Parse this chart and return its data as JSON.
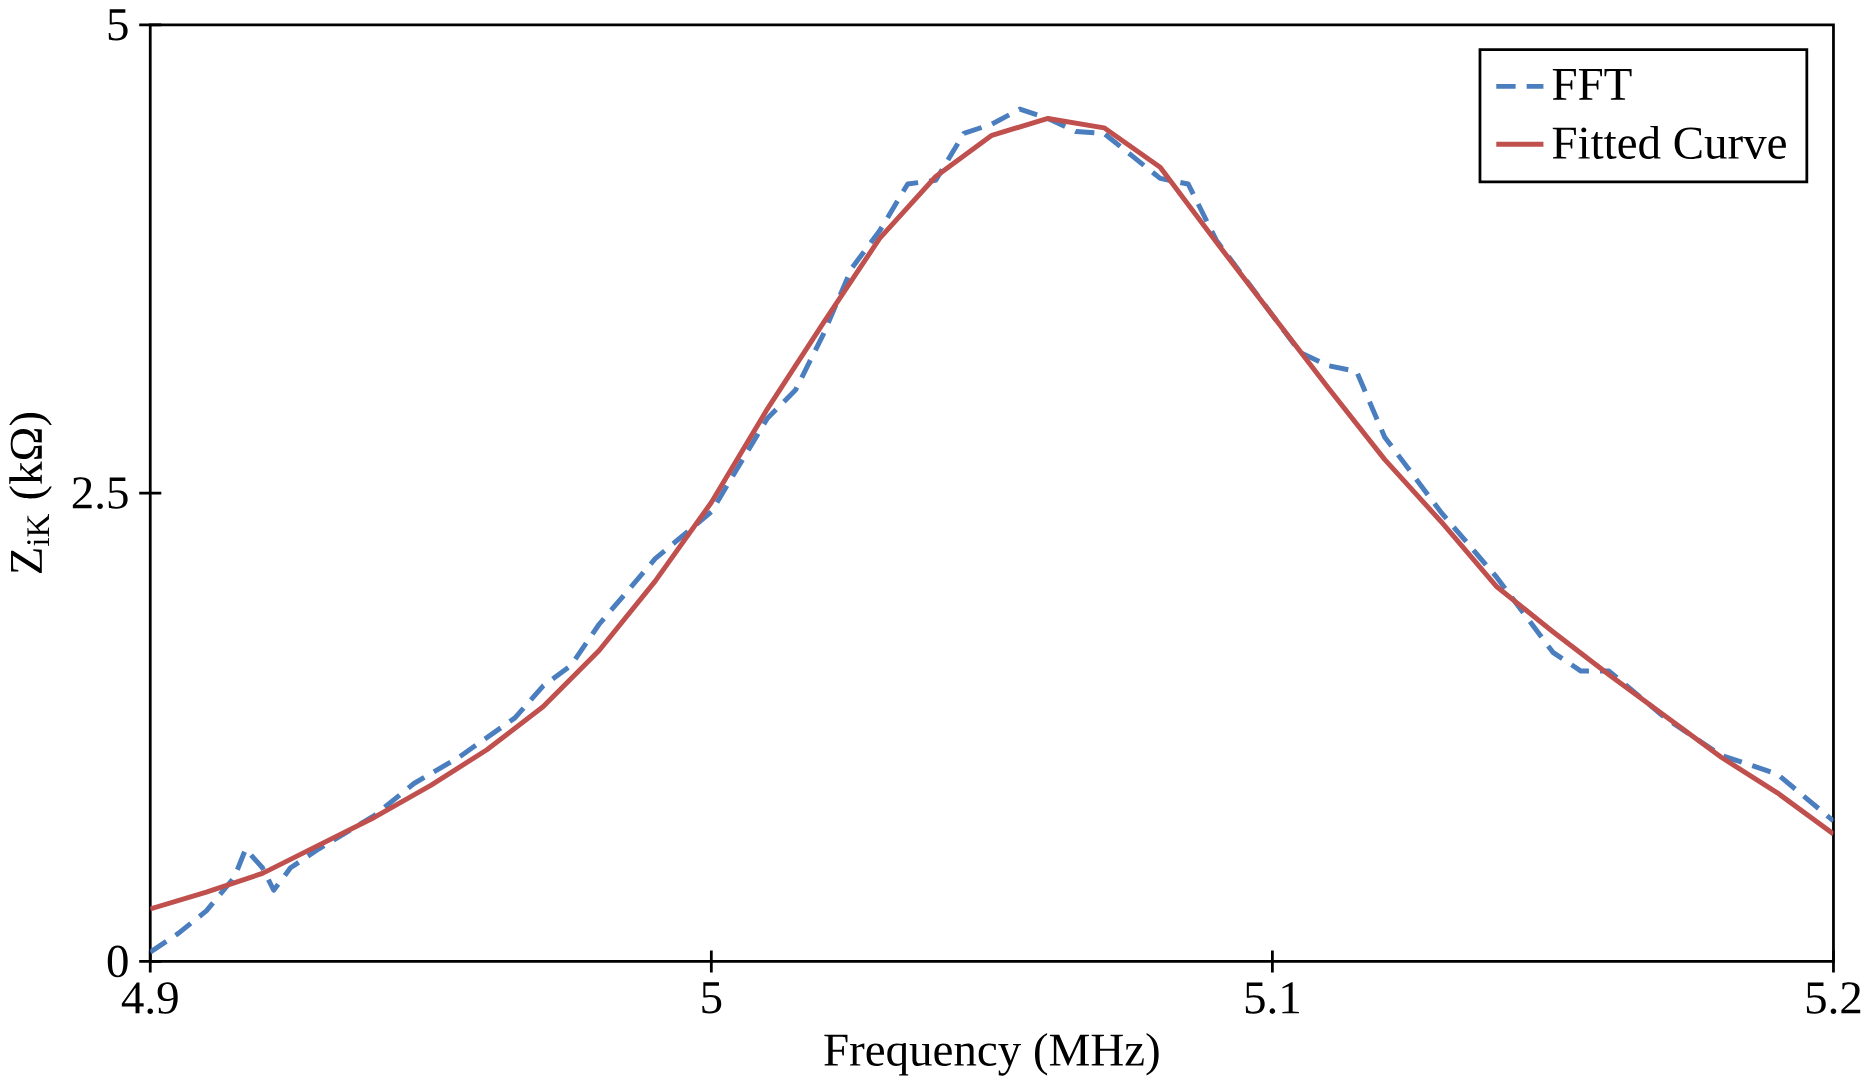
{
  "chart_data": {
    "type": "line",
    "xlabel": "Frequency (MHz)",
    "ylabel": "Z$_{iK}$  (kΩ)",
    "xlim": [
      4.9,
      5.2
    ],
    "xticks": [
      4.9,
      5,
      5.1,
      5.2
    ],
    "ylim": [
      0,
      5
    ],
    "yticks": [
      0,
      2.5,
      5
    ],
    "grid": false,
    "legend": "top right",
    "marker": "none",
    "series": [
      {
        "name": "FFT",
        "color": "#4a7ebf",
        "line_style": "dashed",
        "x": [
          4.9,
          4.905,
          4.91,
          4.915,
          4.917,
          4.92,
          4.922,
          4.925,
          4.93,
          4.94,
          4.947,
          4.955,
          4.965,
          4.97,
          4.975,
          4.98,
          4.99,
          5.0,
          5.01,
          5.015,
          5.02,
          5.025,
          5.03,
          5.035,
          5.04,
          5.045,
          5.05,
          5.055,
          5.06,
          5.065,
          5.07,
          5.075,
          5.08,
          5.085,
          5.09,
          5.1,
          5.105,
          5.11,
          5.115,
          5.12,
          5.13,
          5.14,
          5.15,
          5.155,
          5.16,
          5.17,
          5.18,
          5.19,
          5.2
        ],
        "values": [
          0.05,
          0.15,
          0.27,
          0.45,
          0.6,
          0.5,
          0.38,
          0.5,
          0.6,
          0.78,
          0.95,
          1.09,
          1.3,
          1.47,
          1.58,
          1.8,
          2.15,
          2.4,
          2.9,
          3.05,
          3.35,
          3.7,
          3.9,
          4.15,
          4.17,
          4.42,
          4.47,
          4.55,
          4.5,
          4.43,
          4.42,
          4.3,
          4.18,
          4.15,
          3.85,
          3.45,
          3.25,
          3.18,
          3.15,
          2.8,
          2.4,
          2.05,
          1.65,
          1.55,
          1.55,
          1.3,
          1.1,
          1.0,
          0.75
        ]
      },
      {
        "name": "Fitted Curve",
        "color": "#c0504d",
        "line_style": "solid",
        "x": [
          4.9,
          4.91,
          4.92,
          4.93,
          4.94,
          4.95,
          4.96,
          4.97,
          4.98,
          4.99,
          5.0,
          5.01,
          5.02,
          5.03,
          5.04,
          5.05,
          5.06,
          5.07,
          5.08,
          5.09,
          5.1,
          5.11,
          5.12,
          5.13,
          5.14,
          5.15,
          5.16,
          5.17,
          5.18,
          5.19,
          5.2
        ],
        "values": [
          0.28,
          0.37,
          0.47,
          0.62,
          0.77,
          0.94,
          1.13,
          1.36,
          1.66,
          2.03,
          2.45,
          2.95,
          3.41,
          3.86,
          4.19,
          4.41,
          4.5,
          4.45,
          4.24,
          3.84,
          3.45,
          3.06,
          2.68,
          2.35,
          2.0,
          1.76,
          1.53,
          1.31,
          1.09,
          0.9,
          0.68
        ]
      }
    ]
  }
}
